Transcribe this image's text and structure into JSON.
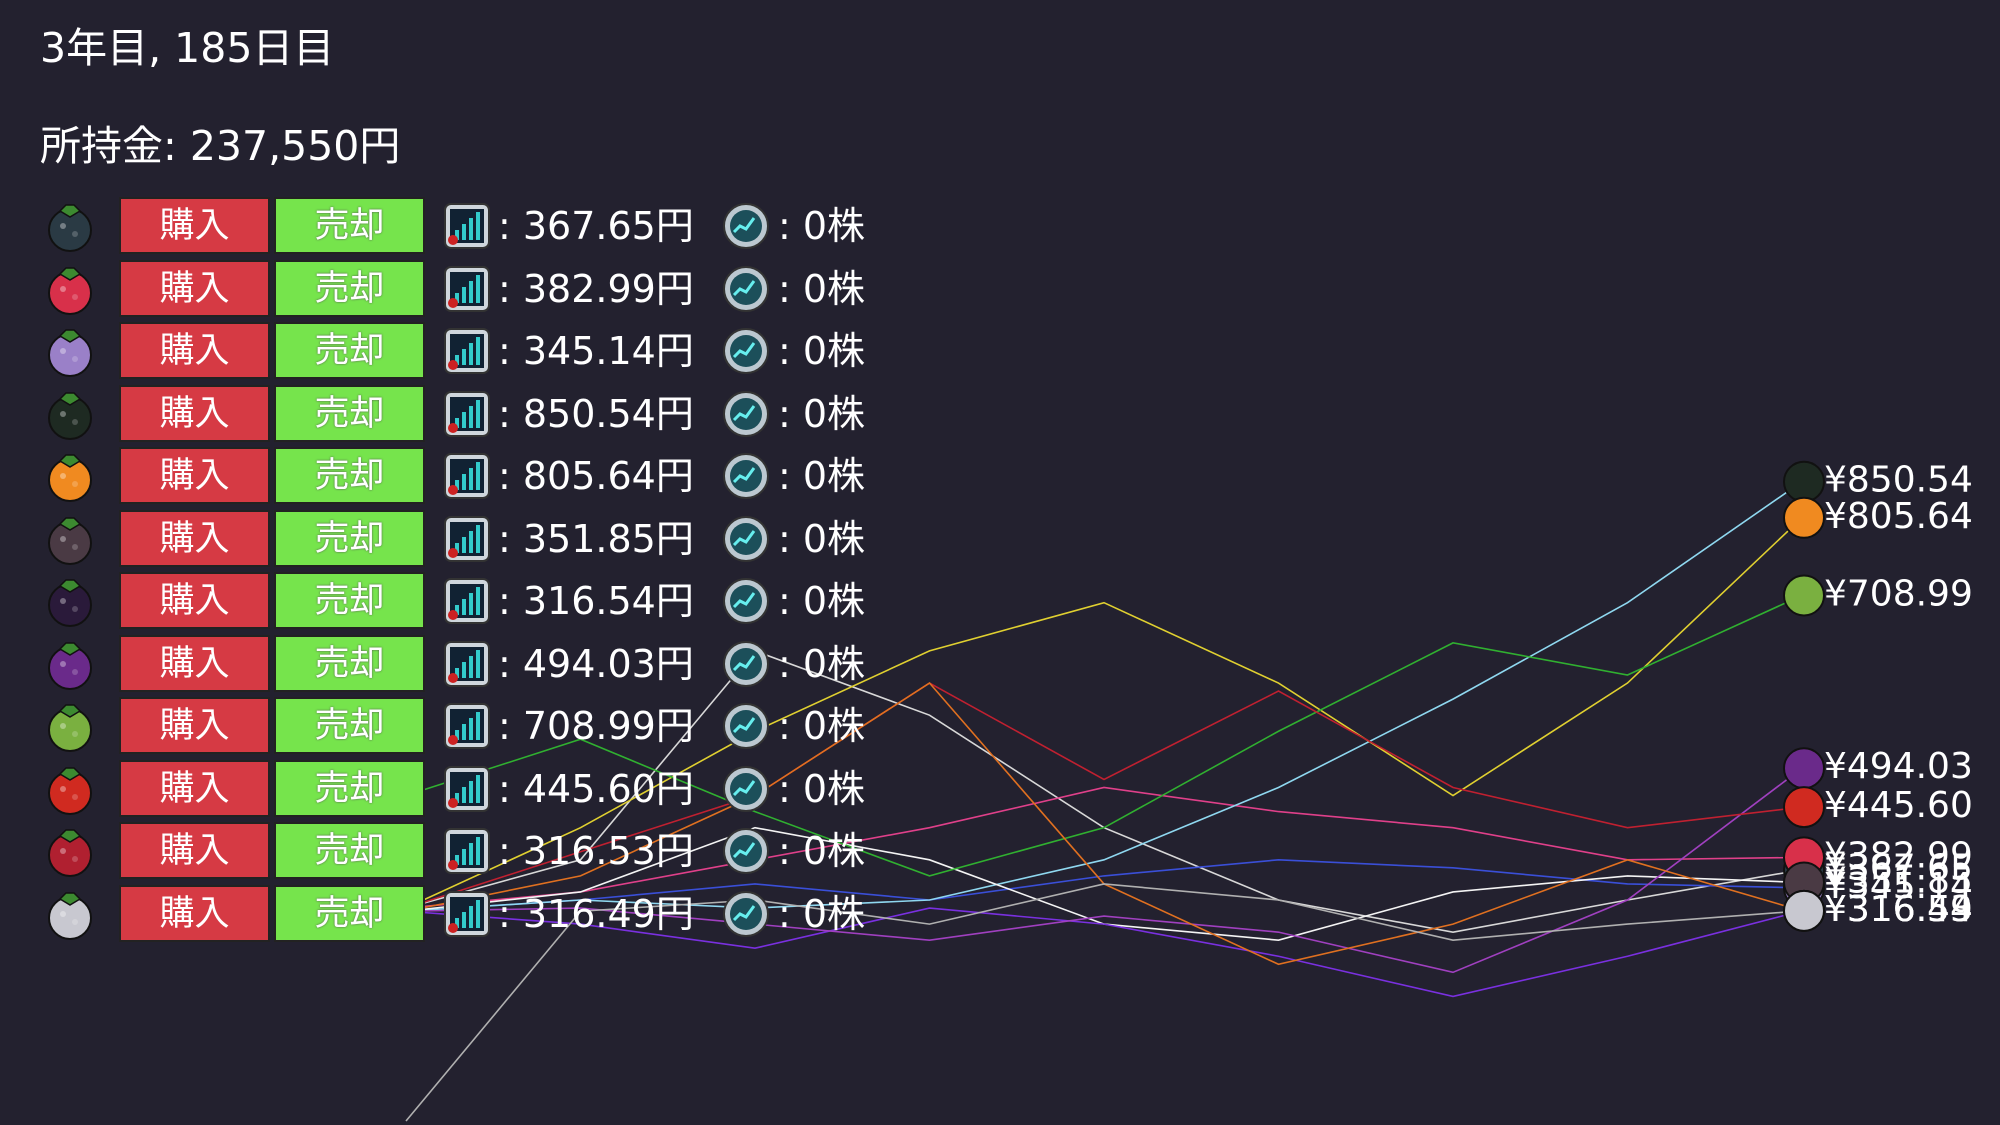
{
  "header": {
    "date": "3年目, 185日目",
    "money": "所持金: 237,550円"
  },
  "buy_label": "購入",
  "sell_label": "売却",
  "rows": [
    {
      "price": ": 367.65円",
      "shares": ": 0株"
    },
    {
      "price": ": 382.99円",
      "shares": ": 0株"
    },
    {
      "price": ": 345.14円",
      "shares": ": 0株"
    },
    {
      "price": ": 850.54円",
      "shares": ": 0株"
    },
    {
      "price": ": 805.64円",
      "shares": ": 0株"
    },
    {
      "price": ": 351.85円",
      "shares": ": 0株"
    },
    {
      "price": ": 316.54円",
      "shares": ": 0株"
    },
    {
      "price": ": 494.03円",
      "shares": ": 0株"
    },
    {
      "price": ": 708.99円",
      "shares": ": 0株"
    },
    {
      "price": ": 445.60円",
      "shares": ": 0株"
    },
    {
      "price": ": 316.53円",
      "shares": ": 0株"
    },
    {
      "price": ": 316.49円",
      "shares": ": 0株"
    }
  ],
  "chart_data": {
    "type": "line",
    "ylim": [
      50,
      1450
    ],
    "series": [
      {
        "color": "#d8d8d8",
        "values": [
          320,
          380,
          640,
          560,
          420,
          330,
          290,
          330,
          367.65
        ],
        "value_labels": [
          null,
          null,
          null,
          null,
          null,
          null,
          null,
          null,
          "¥367.65"
        ]
      },
      {
        "color": "#e0408a",
        "values": [
          320,
          340,
          380,
          420,
          470,
          440,
          420,
          380,
          382.99
        ],
        "value_labels": [
          null,
          null,
          null,
          null,
          null,
          null,
          null,
          null,
          "¥382.99"
        ]
      },
      {
        "color": "#3a4fd8",
        "values": [
          316,
          330,
          350,
          330,
          360,
          380,
          370,
          350,
          345.14
        ],
        "value_labels": [
          null,
          null,
          null,
          null,
          null,
          null,
          null,
          null,
          "¥345.14"
        ]
      },
      {
        "color": "#8fd8f0",
        "values": [
          316,
          330,
          320,
          330,
          380,
          470,
          580,
          700,
          850.54
        ],
        "value_labels": [
          null,
          null,
          null,
          null,
          null,
          null,
          null,
          null,
          "¥850.54"
        ]
      },
      {
        "color": "#e0d030",
        "values": [
          320,
          420,
          540,
          640,
          700,
          600,
          460,
          600,
          805.64
        ],
        "value_labels": [
          null,
          null,
          null,
          null,
          null,
          null,
          null,
          null,
          "¥805.64"
        ]
      },
      {
        "color": "#f4f4f4",
        "values": [
          316,
          340,
          420,
          380,
          300,
          280,
          340,
          360,
          351.85
        ],
        "value_labels": [
          null,
          null,
          null,
          null,
          null,
          null,
          null,
          null,
          "¥351.85"
        ]
      },
      {
        "color": "#7a30e0",
        "values": [
          316,
          300,
          270,
          320,
          300,
          260,
          210,
          260,
          316.54
        ],
        "value_labels": [
          null,
          null,
          null,
          null,
          null,
          null,
          null,
          null,
          "¥316.54"
        ]
      },
      {
        "color": "#a040c0",
        "values": [
          316,
          320,
          300,
          280,
          310,
          290,
          240,
          330,
          494.03
        ],
        "value_labels": [
          null,
          null,
          null,
          null,
          null,
          null,
          null,
          null,
          "¥494.03"
        ]
      },
      {
        "color": "#30b030",
        "values": [
          460,
          530,
          440,
          360,
          420,
          540,
          650,
          610,
          708.99
        ],
        "value_labels": [
          null,
          null,
          null,
          null,
          null,
          null,
          null,
          null,
          "¥708.99"
        ]
      },
      {
        "color": "#c02030",
        "values": [
          320,
          390,
          460,
          600,
          480,
          590,
          470,
          420,
          445.6
        ],
        "value_labels": [
          null,
          null,
          null,
          null,
          null,
          null,
          null,
          null,
          "¥445.60"
        ]
      },
      {
        "color": "#e07020",
        "values": [
          316,
          360,
          460,
          600,
          350,
          250,
          300,
          380,
          316.53
        ],
        "value_labels": [
          null,
          null,
          null,
          null,
          null,
          null,
          null,
          null,
          "¥316.53"
        ]
      },
      {
        "color": "#b0b0b0",
        "values": [
          55,
          316,
          330,
          300,
          350,
          330,
          280,
          300,
          316.49
        ],
        "value_labels": [
          null,
          null,
          null,
          null,
          null,
          null,
          null,
          null,
          "¥316.49"
        ]
      }
    ]
  }
}
